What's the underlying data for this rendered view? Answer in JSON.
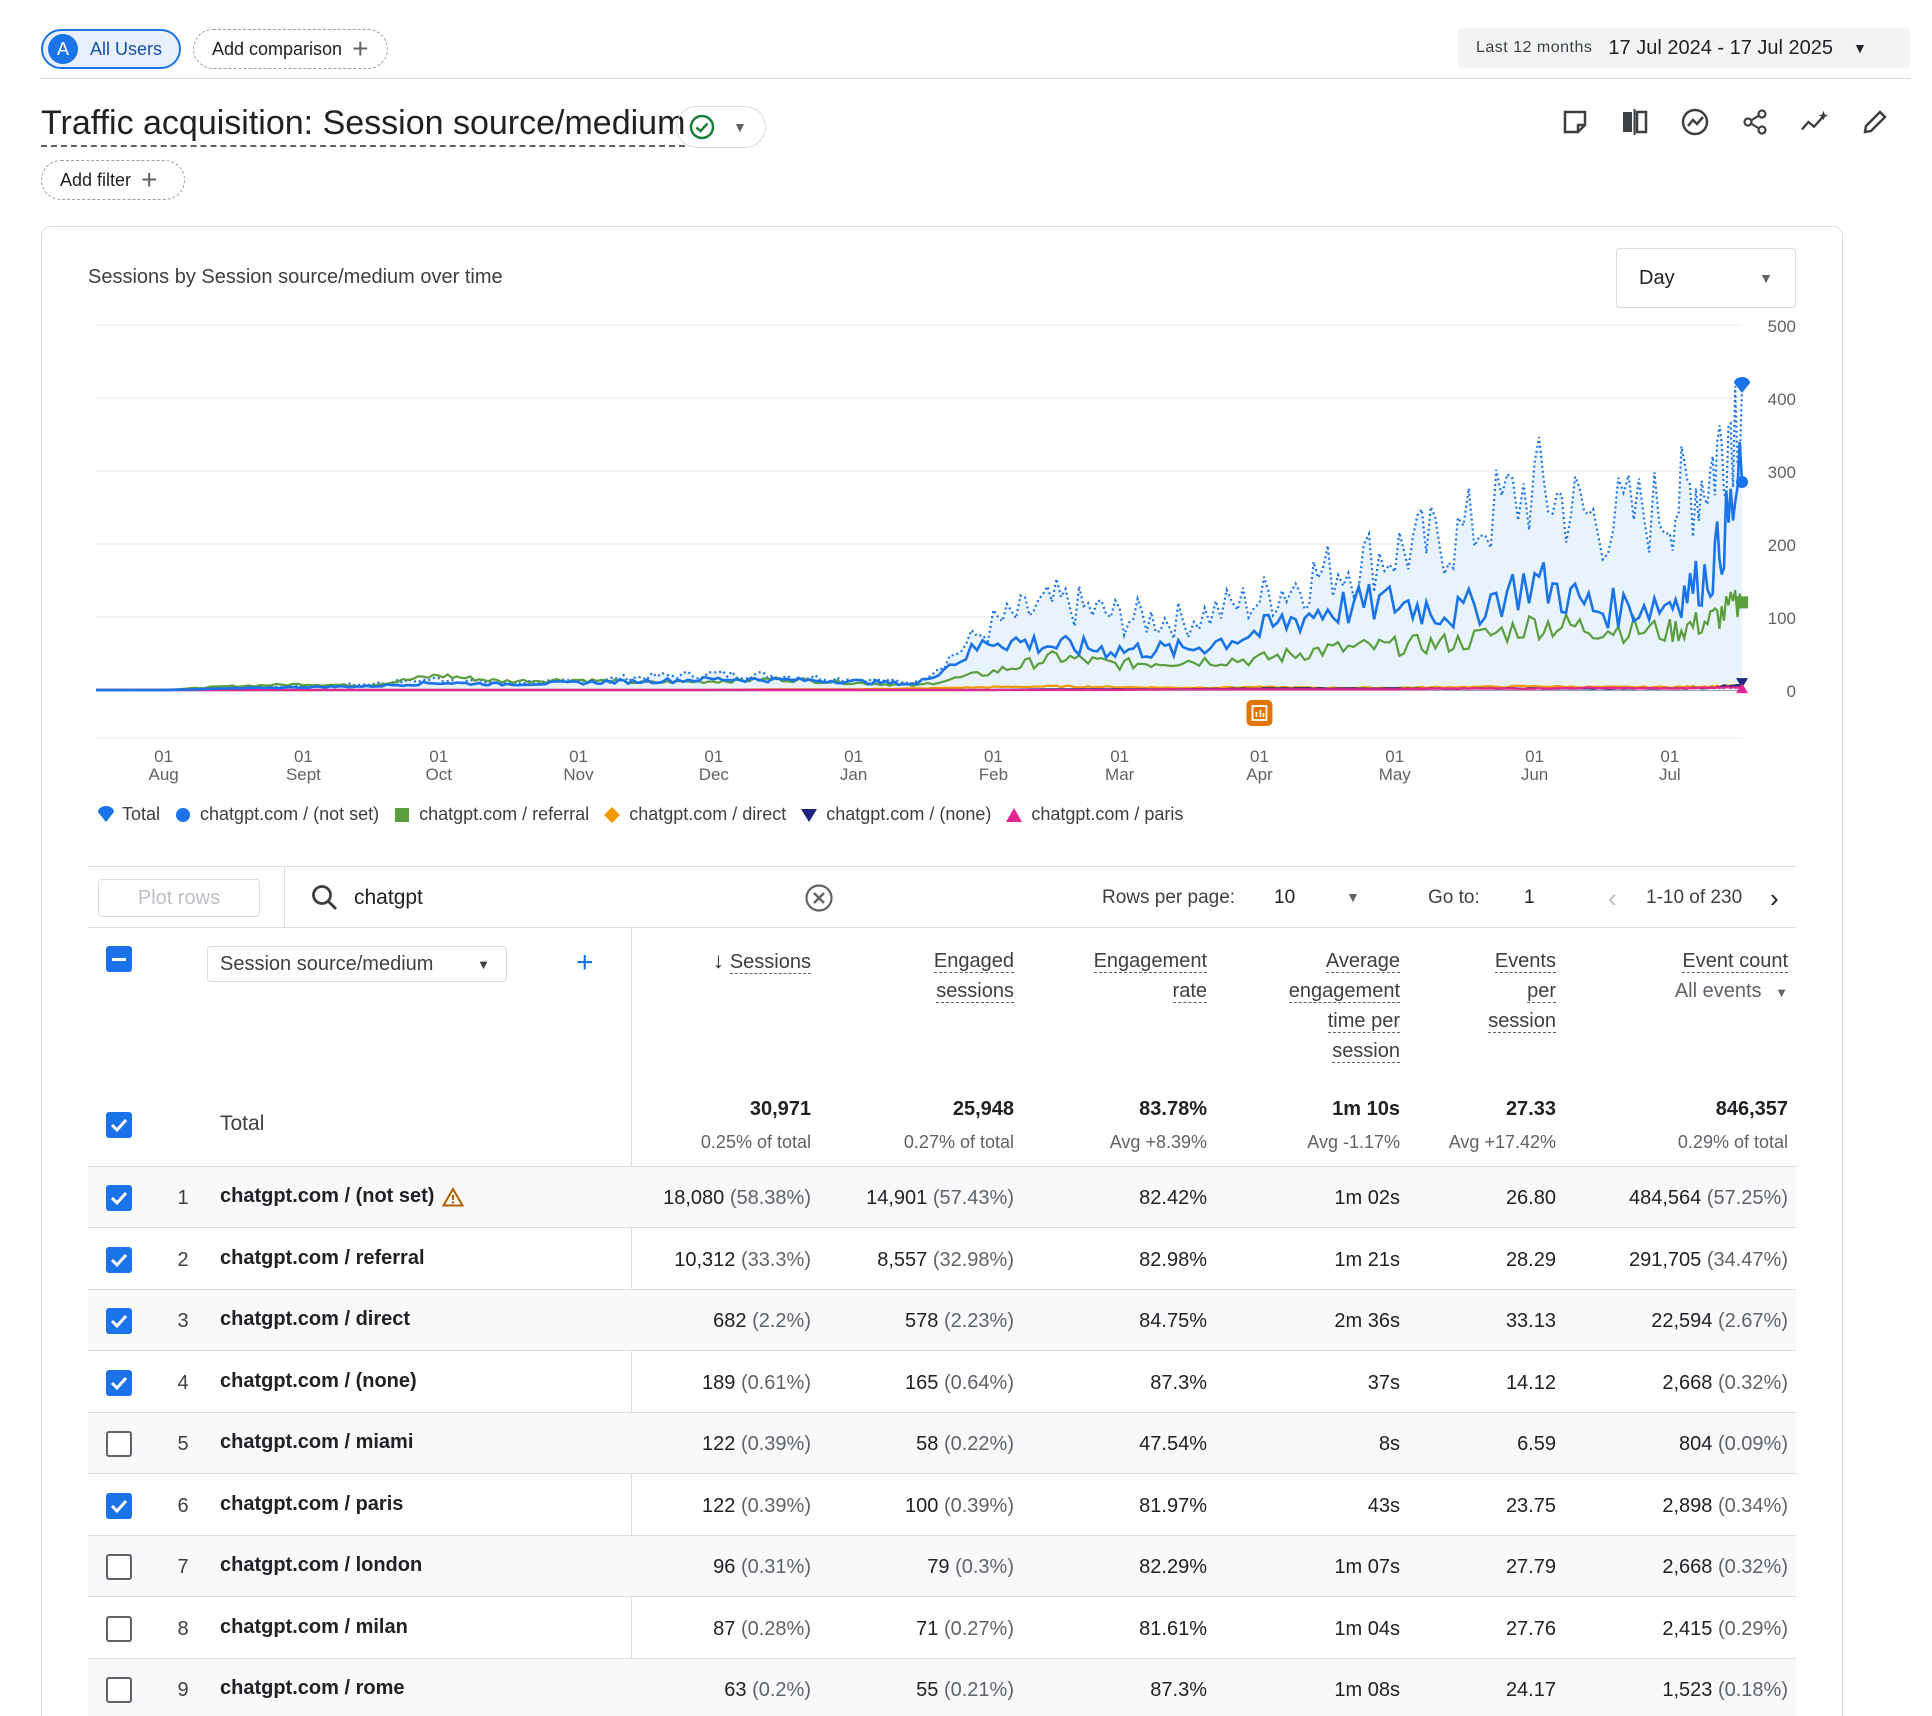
{
  "topbar": {
    "segment_avatar": "A",
    "segment_label": "All Users",
    "add_comparison": "Add comparison",
    "date_range_label": "Last 12 months",
    "date_range_value": "17 Jul 2024 - 17 Jul 2025"
  },
  "report": {
    "title": "Traffic acquisition: Session source/medium",
    "add_filter": "Add filter"
  },
  "chart_card": {
    "title": "Sessions by Session source/medium over time",
    "interval": "Day"
  },
  "chart_data": {
    "type": "line",
    "title": "Sessions by Session source/medium over time",
    "x_ticks": [
      "01 Aug",
      "01 Sept",
      "01 Oct",
      "01 Nov",
      "01 Dec",
      "01 Jan",
      "01 Feb",
      "01 Mar",
      "01 Apr",
      "01 May",
      "01 Jun",
      "01 Jul"
    ],
    "y_ticks": [
      0,
      100,
      200,
      300,
      400,
      500
    ],
    "ylim": [
      0,
      500
    ],
    "grid": true,
    "legend_position": "bottom-left",
    "x": [
      "2024-07-17",
      "2024-08-01",
      "2024-08-15",
      "2024-09-01",
      "2024-09-15",
      "2024-10-01",
      "2024-10-15",
      "2024-11-01",
      "2024-11-15",
      "2024-12-01",
      "2024-12-15",
      "2025-01-01",
      "2025-01-15",
      "2025-02-01",
      "2025-02-15",
      "2025-03-01",
      "2025-03-15",
      "2025-04-01",
      "2025-04-15",
      "2025-05-01",
      "2025-05-15",
      "2025-06-01",
      "2025-06-15",
      "2025-07-01",
      "2025-07-10",
      "2025-07-17"
    ],
    "series": [
      {
        "name": "Total",
        "color": "#1a73e8",
        "style": "dotted-area",
        "values": [
          0,
          0,
          3,
          5,
          8,
          15,
          10,
          12,
          18,
          22,
          20,
          15,
          10,
          90,
          120,
          100,
          95,
          125,
          160,
          190,
          210,
          280,
          230,
          250,
          300,
          415
        ]
      },
      {
        "name": "chatgpt.com / (not set)",
        "color": "#1a73e8",
        "style": "solid",
        "values": [
          0,
          0,
          2,
          4,
          5,
          10,
          8,
          10,
          12,
          15,
          14,
          12,
          8,
          70,
          60,
          55,
          55,
          80,
          110,
          120,
          105,
          150,
          110,
          120,
          160,
          285
        ]
      },
      {
        "name": "chatgpt.com / referral",
        "color": "#5b9e3c",
        "style": "solid",
        "values": [
          0,
          0,
          5,
          8,
          6,
          20,
          12,
          14,
          10,
          12,
          15,
          10,
          6,
          25,
          45,
          35,
          40,
          42,
          55,
          60,
          65,
          90,
          85,
          80,
          95,
          120
        ]
      },
      {
        "name": "chatgpt.com / direct",
        "color": "#f29900",
        "style": "solid",
        "values": [
          0,
          0,
          0,
          0,
          0,
          0,
          0,
          0,
          0,
          0,
          1,
          1,
          2,
          4,
          5,
          4,
          3,
          4,
          3,
          3,
          4,
          5,
          4,
          4,
          5,
          6
        ]
      },
      {
        "name": "chatgpt.com / (none)",
        "color": "#1a237e",
        "style": "solid",
        "values": [
          0,
          0,
          0,
          0,
          0,
          0,
          0,
          0,
          0,
          0,
          0,
          0,
          0,
          0,
          1,
          1,
          1,
          2,
          2,
          2,
          2,
          2,
          2,
          2,
          3,
          8
        ]
      },
      {
        "name": "chatgpt.com / paris",
        "color": "#e52592",
        "style": "solid",
        "values": [
          0,
          0,
          0,
          0,
          0,
          0,
          0,
          0,
          0,
          0,
          0,
          0,
          0,
          0,
          0,
          0,
          1,
          1,
          1,
          1,
          2,
          2,
          3,
          2,
          3,
          4
        ]
      }
    ]
  },
  "table_controls": {
    "plot_rows": "Plot rows",
    "search_value": "chatgpt",
    "rows_per_page_label": "Rows per page:",
    "rows_per_page": "10",
    "go_to_label": "Go to:",
    "go_to_value": "1",
    "page_range": "1-10 of 230"
  },
  "table": {
    "dimension": "Session source/medium",
    "headers": {
      "sessions": "Sessions",
      "engaged_sessions": [
        "Engaged",
        "sessions"
      ],
      "engagement_rate": [
        "Engagement",
        "rate"
      ],
      "avg_engagement_time": [
        "Average",
        "engagement",
        "time per",
        "session"
      ],
      "events_per_session": [
        "Events",
        "per",
        "session"
      ],
      "event_count": "Event count",
      "event_count_sub": "All events"
    },
    "total": {
      "label": "Total",
      "sessions": "30,971",
      "sessions_sub": "0.25% of total",
      "engaged_sessions": "25,948",
      "engaged_sessions_sub": "0.27% of total",
      "engagement_rate": "83.78%",
      "engagement_rate_sub": "Avg +8.39%",
      "avg_time": "1m 10s",
      "avg_time_sub": "Avg -1.17%",
      "events_per_session": "27.33",
      "events_per_session_sub": "Avg +17.42%",
      "event_count": "846,357",
      "event_count_sub": "0.29% of total"
    },
    "rows": [
      {
        "num": "1",
        "checked": true,
        "dim": "chatgpt.com / (not set)",
        "warning": true,
        "sessions": "18,080",
        "sessions_pct": "(58.38%)",
        "engaged": "14,901",
        "engaged_pct": "(57.43%)",
        "rate": "82.42%",
        "time": "1m 02s",
        "eps": "26.80",
        "events": "484,564",
        "events_pct": "(57.25%)"
      },
      {
        "num": "2",
        "checked": true,
        "dim": "chatgpt.com / referral",
        "warning": false,
        "sessions": "10,312",
        "sessions_pct": "(33.3%)",
        "engaged": "8,557",
        "engaged_pct": "(32.98%)",
        "rate": "82.98%",
        "time": "1m 21s",
        "eps": "28.29",
        "events": "291,705",
        "events_pct": "(34.47%)"
      },
      {
        "num": "3",
        "checked": true,
        "dim": "chatgpt.com / direct",
        "warning": false,
        "sessions": "682",
        "sessions_pct": "(2.2%)",
        "engaged": "578",
        "engaged_pct": "(2.23%)",
        "rate": "84.75%",
        "time": "2m 36s",
        "eps": "33.13",
        "events": "22,594",
        "events_pct": "(2.67%)"
      },
      {
        "num": "4",
        "checked": true,
        "dim": "chatgpt.com / (none)",
        "warning": false,
        "sessions": "189",
        "sessions_pct": "(0.61%)",
        "engaged": "165",
        "engaged_pct": "(0.64%)",
        "rate": "87.3%",
        "time": "37s",
        "eps": "14.12",
        "events": "2,668",
        "events_pct": "(0.32%)"
      },
      {
        "num": "5",
        "checked": false,
        "dim": "chatgpt.com / miami",
        "warning": false,
        "sessions": "122",
        "sessions_pct": "(0.39%)",
        "engaged": "58",
        "engaged_pct": "(0.22%)",
        "rate": "47.54%",
        "time": "8s",
        "eps": "6.59",
        "events": "804",
        "events_pct": "(0.09%)"
      },
      {
        "num": "6",
        "checked": true,
        "dim": "chatgpt.com / paris",
        "warning": false,
        "sessions": "122",
        "sessions_pct": "(0.39%)",
        "engaged": "100",
        "engaged_pct": "(0.39%)",
        "rate": "81.97%",
        "time": "43s",
        "eps": "23.75",
        "events": "2,898",
        "events_pct": "(0.34%)"
      },
      {
        "num": "7",
        "checked": false,
        "dim": "chatgpt.com / london",
        "warning": false,
        "sessions": "96",
        "sessions_pct": "(0.31%)",
        "engaged": "79",
        "engaged_pct": "(0.3%)",
        "rate": "82.29%",
        "time": "1m 07s",
        "eps": "27.79",
        "events": "2,668",
        "events_pct": "(0.32%)"
      },
      {
        "num": "8",
        "checked": false,
        "dim": "chatgpt.com / milan",
        "warning": false,
        "sessions": "87",
        "sessions_pct": "(0.28%)",
        "engaged": "71",
        "engaged_pct": "(0.27%)",
        "rate": "81.61%",
        "time": "1m 04s",
        "eps": "27.76",
        "events": "2,415",
        "events_pct": "(0.29%)"
      },
      {
        "num": "9",
        "checked": false,
        "dim": "chatgpt.com / rome",
        "warning": false,
        "sessions": "63",
        "sessions_pct": "(0.2%)",
        "engaged": "55",
        "engaged_pct": "(0.21%)",
        "rate": "87.3%",
        "time": "1m 08s",
        "eps": "24.17",
        "events": "1,523",
        "events_pct": "(0.18%)"
      }
    ]
  }
}
